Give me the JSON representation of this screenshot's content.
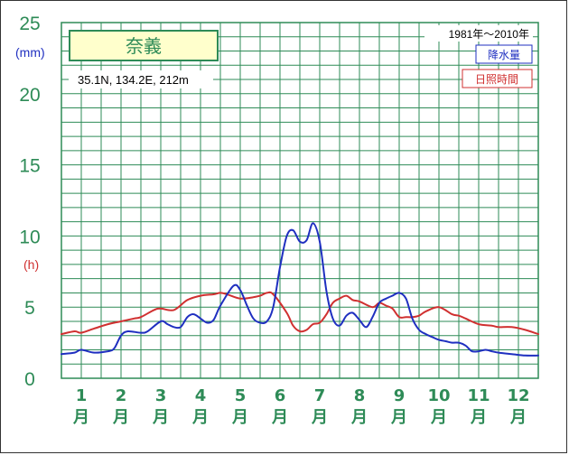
{
  "chart_data": {
    "type": "line",
    "station": "奈義",
    "location": "35.1N,  134.2E,  212m",
    "period": "1981年～2010年",
    "y_unit_precip": "(mm)",
    "y_unit_sun": "(h)",
    "ylim": [
      0,
      25
    ],
    "yticks": [
      "0",
      "5",
      "10",
      "15",
      "20",
      "25"
    ],
    "yticks_values": [
      0,
      5,
      10,
      15,
      20,
      25
    ],
    "month_numbers": [
      "1",
      "2",
      "3",
      "4",
      "5",
      "6",
      "7",
      "8",
      "9",
      "10",
      "11",
      "12"
    ],
    "month_suffix": "月",
    "series": [
      {
        "name": "降水量",
        "color": "#1f2fc0",
        "x": [
          0.0,
          0.33,
          0.5,
          0.83,
          1.17,
          1.33,
          1.5,
          1.67,
          2.0,
          2.17,
          2.5,
          2.67,
          2.83,
          3.0,
          3.17,
          3.33,
          3.5,
          3.67,
          3.83,
          4.0,
          4.33,
          4.5,
          4.67,
          4.83,
          5.0,
          5.17,
          5.33,
          5.5,
          5.67,
          5.83,
          6.0,
          6.17,
          6.33,
          6.5,
          6.67,
          6.83,
          7.0,
          7.17,
          7.33,
          7.5,
          7.67,
          7.83,
          8.0,
          8.17,
          8.33,
          8.5,
          8.67,
          8.83,
          9.0,
          9.17,
          9.33,
          9.5,
          9.67,
          9.83,
          10.0,
          10.17,
          10.33,
          10.5,
          10.67,
          10.83,
          11.0,
          11.33,
          11.67,
          12.0
        ],
        "values": [
          1.7,
          1.8,
          2.0,
          1.8,
          1.9,
          2.1,
          3.0,
          3.3,
          3.2,
          3.3,
          4.0,
          3.8,
          3.6,
          3.6,
          4.3,
          4.5,
          4.2,
          3.9,
          4.1,
          5.1,
          6.5,
          6.2,
          5.1,
          4.2,
          3.9,
          4.0,
          5.0,
          7.8,
          10.0,
          10.4,
          9.6,
          9.7,
          10.9,
          9.6,
          6.1,
          4.2,
          3.7,
          4.4,
          4.6,
          4.1,
          3.6,
          4.3,
          5.3,
          5.6,
          5.8,
          6.0,
          5.6,
          4.2,
          3.4,
          3.1,
          2.9,
          2.7,
          2.6,
          2.5,
          2.5,
          2.3,
          1.9,
          1.9,
          2.0,
          1.9,
          1.8,
          1.7,
          1.6,
          1.6
        ]
      },
      {
        "name": "日照時間",
        "color": "#d03030",
        "x": [
          0.0,
          0.33,
          0.5,
          0.83,
          1.17,
          1.5,
          1.83,
          2.0,
          2.33,
          2.5,
          2.83,
          3.17,
          3.5,
          3.83,
          4.0,
          4.17,
          4.5,
          4.83,
          5.0,
          5.17,
          5.33,
          5.67,
          5.83,
          6.0,
          6.17,
          6.33,
          6.5,
          6.67,
          6.83,
          7.0,
          7.17,
          7.33,
          7.5,
          7.83,
          8.0,
          8.17,
          8.33,
          8.5,
          8.67,
          8.83,
          9.0,
          9.17,
          9.5,
          9.83,
          10.0,
          10.17,
          10.5,
          10.83,
          11.0,
          11.33,
          11.67,
          12.0
        ],
        "values": [
          3.1,
          3.3,
          3.2,
          3.5,
          3.8,
          4.0,
          4.2,
          4.3,
          4.8,
          4.9,
          4.8,
          5.5,
          5.8,
          5.9,
          6.0,
          5.9,
          5.6,
          5.7,
          5.8,
          6.0,
          5.9,
          4.6,
          3.7,
          3.3,
          3.4,
          3.8,
          3.9,
          4.5,
          5.3,
          5.6,
          5.8,
          5.5,
          5.4,
          5.0,
          5.3,
          5.1,
          4.9,
          4.3,
          4.3,
          4.3,
          4.4,
          4.7,
          5.0,
          4.5,
          4.4,
          4.2,
          3.8,
          3.7,
          3.6,
          3.6,
          3.4,
          3.1
        ]
      }
    ],
    "grid": true,
    "legend": "top-right"
  },
  "colors": {
    "grid": "#2e8b57",
    "station_box_fill": "#ffffcc",
    "station_box_border": "#2e8b57"
  }
}
